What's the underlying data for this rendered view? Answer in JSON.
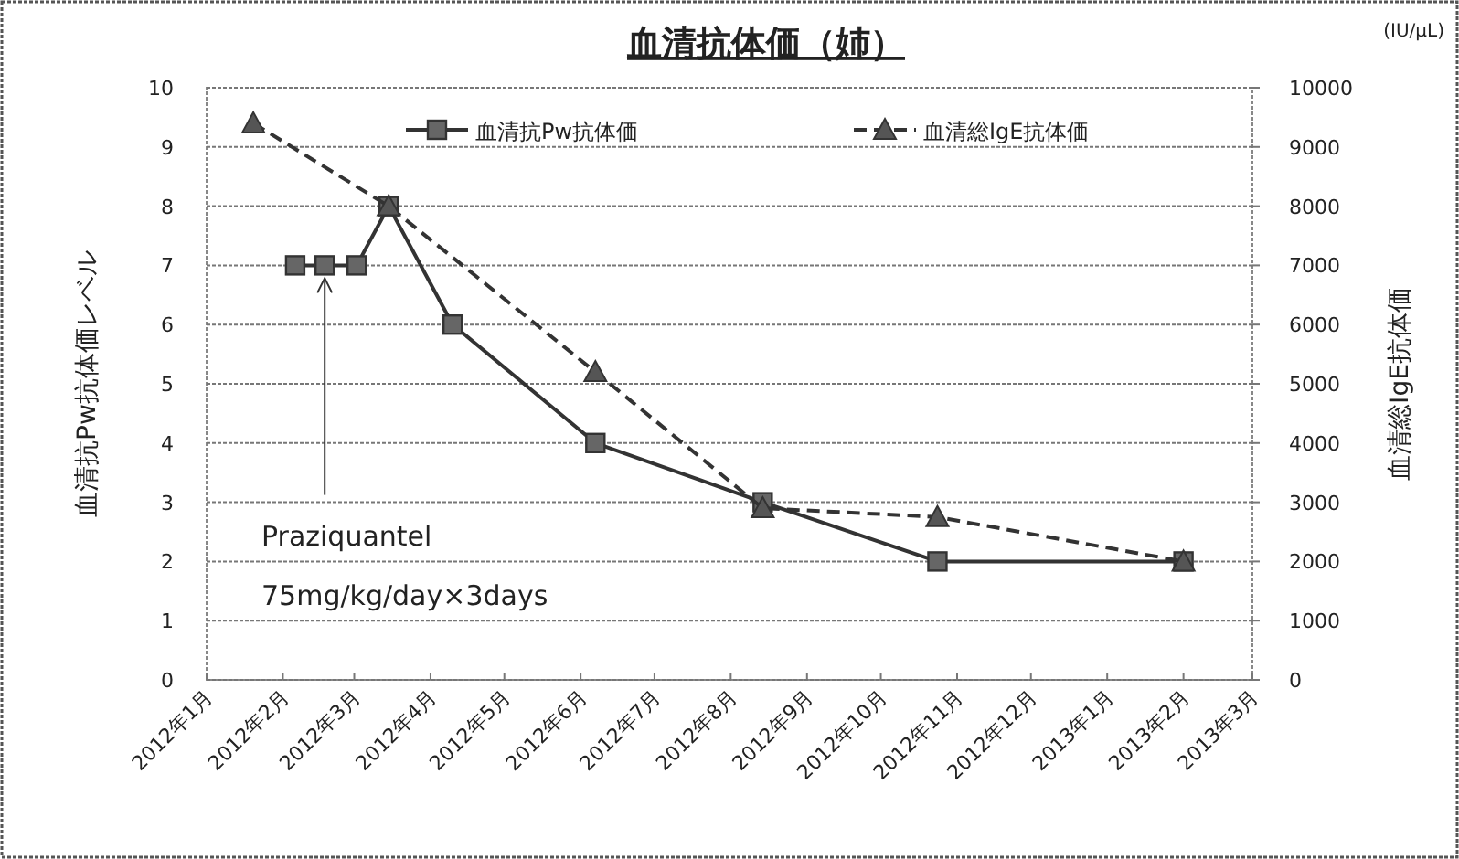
{
  "chart_data": {
    "type": "line",
    "title": "血清抗体価（姉）",
    "ylabel": "血清抗Pw抗体価レベル",
    "y2label": "血清総IgE抗体価",
    "annotations": [
      {
        "text": "Praziquantel",
        "x": "2012-02-18",
        "y": 7
      },
      "75mg/kg/day×3days",
      "(IU/μL)"
    ],
    "xlim": [
      "2012-01",
      "2013-03"
    ],
    "xticks": [
      {
        "value": "2012-01",
        "label": "2012年1月"
      },
      {
        "value": "2012-02",
        "label": "2012年2月"
      },
      {
        "value": "2012-03",
        "label": "2012年3月"
      },
      {
        "value": "2012-04",
        "label": "2012年4月"
      },
      {
        "value": "2012-05",
        "label": "2012年5月"
      },
      {
        "value": "2012-06",
        "label": "2012年6月"
      },
      {
        "value": "2012-07",
        "label": "2012年7月"
      },
      {
        "value": "2012-08",
        "label": "2012年8月"
      },
      {
        "value": "2012-09",
        "label": "2012年9月"
      },
      {
        "value": "2012-10",
        "label": "2012年10月"
      },
      {
        "value": "2012-11",
        "label": "2012年11月"
      },
      {
        "value": "2012-12",
        "label": "2012年12月"
      },
      {
        "value": "2013-01",
        "label": "2013年1月"
      },
      {
        "value": "2013-02",
        "label": "2013年2月"
      },
      {
        "value": "2013-03",
        "label": "2013年3月"
      }
    ],
    "ylim": [
      0,
      10
    ],
    "yticks": [
      0,
      1,
      2,
      3,
      4,
      5,
      6,
      7,
      8,
      9,
      10
    ],
    "y2lim": [
      0,
      10000
    ],
    "y2ticks": [
      0,
      1000,
      2000,
      3000,
      4000,
      5000,
      6000,
      7000,
      8000,
      9000,
      10000
    ],
    "grid": "y",
    "legend": "top",
    "series": [
      {
        "name": "血清抗Pw抗体価",
        "color": "#333333",
        "marker": "square",
        "line_style": "solid",
        "x": [
          "2012-02-06",
          "2012-02-18",
          "2012-03-02",
          "2012-03-15",
          "2012-04-10",
          "2012-06-07",
          "2012-08-14",
          "2012-10-24",
          "2013-02-01"
        ],
        "values": [
          7,
          7,
          7,
          8,
          6,
          4,
          3,
          2,
          2
        ]
      },
      {
        "name": "血清総IgE抗体価",
        "color": "#333333",
        "marker": "triangle",
        "line_style": "dashed",
        "axis": "y2",
        "x": [
          "2012-01-20",
          "2012-03-15",
          "2012-06-07",
          "2012-08-14",
          "2012-10-24",
          "2013-02-01"
        ],
        "values": [
          9400,
          8000,
          5200,
          2900,
          2750,
          2000
        ]
      }
    ]
  }
}
